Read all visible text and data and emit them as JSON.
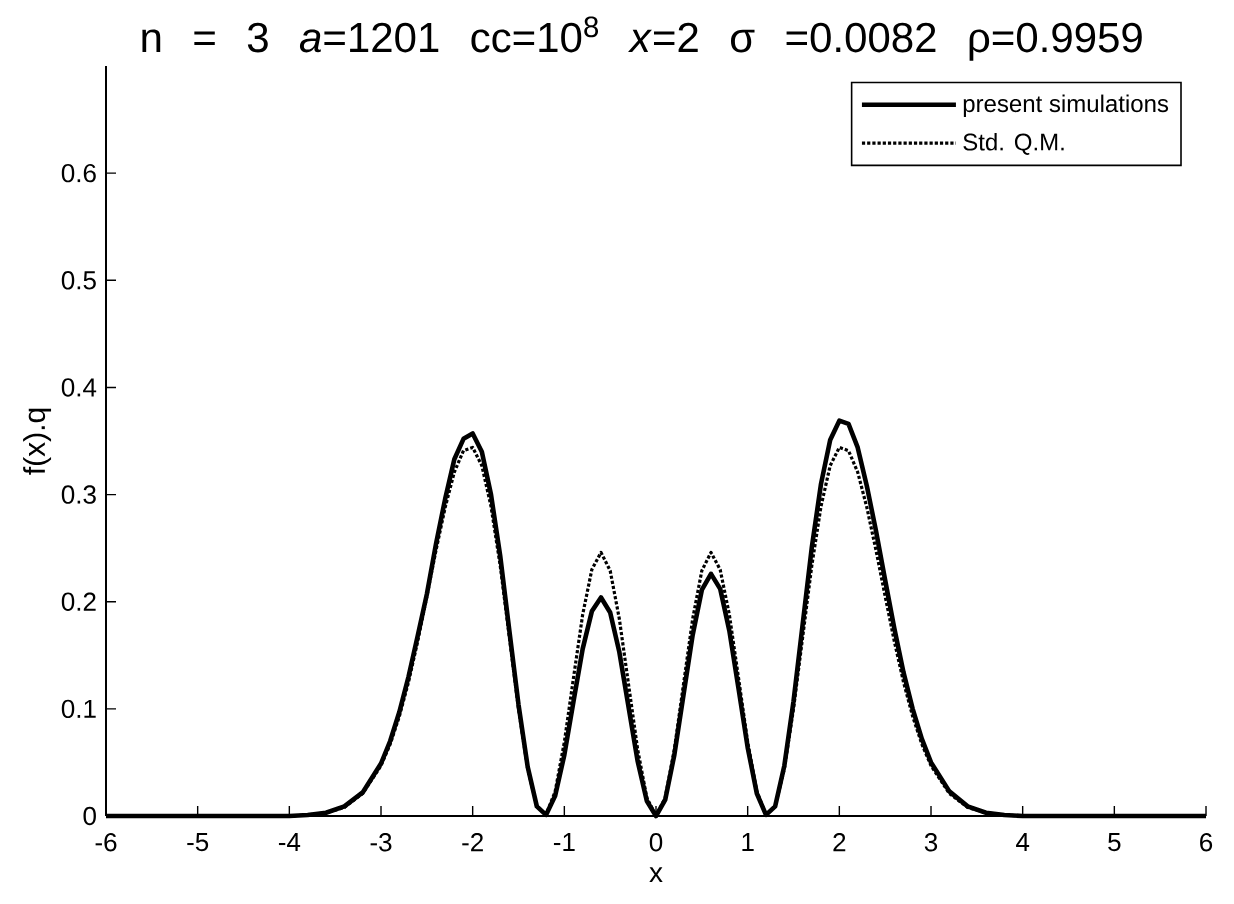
{
  "chart_data": {
    "type": "line",
    "title": "n = 3 *a*=1201 cc=10$^{8}$ *x*=2 σ =0.0082 ρ=0.9959",
    "xlabel": "x",
    "ylabel": "f(x).q",
    "x": [
      -6,
      -4.0,
      -3.8,
      -3.6,
      -3.4,
      -3.2,
      -3.0,
      -2.9,
      -2.8,
      -2.7,
      -2.6,
      -2.5,
      -2.4,
      -2.3,
      -2.2,
      -2.1,
      -2.0,
      -1.9,
      -1.8,
      -1.7,
      -1.6,
      -1.5,
      -1.4,
      -1.3,
      -1.2,
      -1.1,
      -1.0,
      -0.9,
      -0.8,
      -0.7,
      -0.6,
      -0.5,
      -0.4,
      -0.3,
      -0.2,
      -0.1,
      0,
      0.1,
      0.2,
      0.3,
      0.4,
      0.5,
      0.6,
      0.7,
      0.8,
      0.9,
      1.0,
      1.1,
      1.2,
      1.3,
      1.4,
      1.5,
      1.6,
      1.7,
      1.8,
      1.9,
      2.0,
      2.1,
      2.2,
      2.3,
      2.4,
      2.5,
      2.6,
      2.7,
      2.8,
      2.9,
      3.0,
      3.2,
      3.4,
      3.6,
      3.8,
      4.0,
      6
    ],
    "series": [
      {
        "name": "present simulations",
        "color": "#000000",
        "line_style": "solid",
        "values": [
          0,
          0,
          0.001,
          0.003,
          0.009,
          0.022,
          0.049,
          0.07,
          0.097,
          0.13,
          0.168,
          0.207,
          0.254,
          0.296,
          0.333,
          0.352,
          0.357,
          0.34,
          0.3,
          0.243,
          0.173,
          0.104,
          0.046,
          0.009,
          0.001,
          0.019,
          0.057,
          0.107,
          0.156,
          0.191,
          0.204,
          0.19,
          0.153,
          0.102,
          0.051,
          0.014,
          0,
          0.015,
          0.057,
          0.113,
          0.169,
          0.211,
          0.226,
          0.212,
          0.173,
          0.119,
          0.064,
          0.021,
          0.001,
          0.009,
          0.047,
          0.107,
          0.179,
          0.251,
          0.31,
          0.351,
          0.369,
          0.366,
          0.344,
          0.308,
          0.266,
          0.22,
          0.175,
          0.134,
          0.1,
          0.072,
          0.05,
          0.023,
          0.009,
          0.003,
          0.001,
          0,
          0
        ]
      },
      {
        "name": "Std. Q.M.",
        "color": "#000000",
        "line_style": "dotted",
        "values": [
          0,
          0,
          0.001,
          0.003,
          0.008,
          0.021,
          0.047,
          0.067,
          0.093,
          0.125,
          0.163,
          0.205,
          0.248,
          0.288,
          0.321,
          0.341,
          0.344,
          0.327,
          0.289,
          0.234,
          0.167,
          0.1,
          0.044,
          0.009,
          0.001,
          0.023,
          0.069,
          0.129,
          0.188,
          0.23,
          0.246,
          0.229,
          0.184,
          0.123,
          0.062,
          0.017,
          0,
          0.017,
          0.062,
          0.123,
          0.184,
          0.229,
          0.246,
          0.23,
          0.188,
          0.129,
          0.069,
          0.023,
          0.001,
          0.009,
          0.044,
          0.1,
          0.167,
          0.234,
          0.289,
          0.327,
          0.344,
          0.341,
          0.321,
          0.288,
          0.248,
          0.205,
          0.163,
          0.125,
          0.093,
          0.067,
          0.047,
          0.021,
          0.008,
          0.003,
          0.001,
          0,
          0
        ]
      }
    ],
    "xlim": [
      -6,
      6
    ],
    "ylim": [
      0,
      0.7
    ],
    "xticks": [
      -6,
      -5,
      -4,
      -3,
      -2,
      -1,
      0,
      1,
      2,
      3,
      4,
      5,
      6
    ],
    "yticks": [
      0,
      0.1,
      0.2,
      0.3,
      0.4,
      0.5,
      0.6
    ],
    "legend": "top right"
  }
}
